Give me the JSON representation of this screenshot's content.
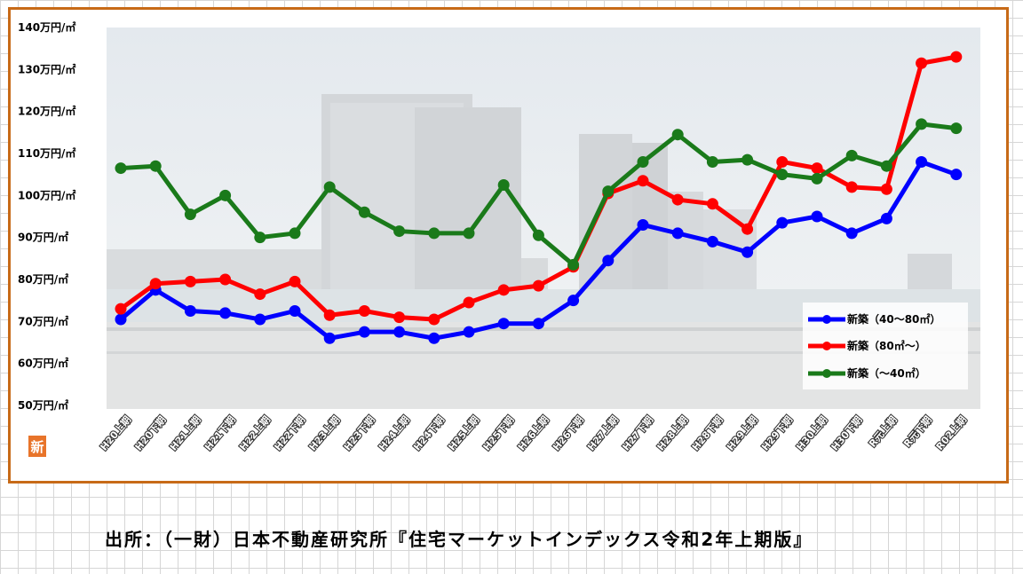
{
  "chart_data": {
    "type": "line",
    "title": "",
    "xlabel": "",
    "ylabel": "",
    "ylim": [
      50,
      140
    ],
    "yticks": [
      50,
      60,
      70,
      80,
      90,
      100,
      110,
      120,
      130,
      140
    ],
    "y_unit_suffix": "万円/㎡",
    "categories": [
      "H20上期",
      "H20下期",
      "H21上期",
      "H21下期",
      "H22上期",
      "H22下期",
      "H23上期",
      "H23下期",
      "H24上期",
      "H24下期",
      "H25上期",
      "H25下期",
      "H26上期",
      "H26下期",
      "H27上期",
      "H27下期",
      "H28上期",
      "H28下期",
      "H29上期",
      "H29下期",
      "H30上期",
      "H30下期",
      "R元上期",
      "R元下期",
      "R02上期"
    ],
    "grid": false,
    "legend_position": "bottom-right",
    "series": [
      {
        "name": "新築（40～80㎡）",
        "color": "#0000ff",
        "values": [
          70.5,
          77.5,
          72.5,
          72,
          70.5,
          72.5,
          66,
          67.5,
          67.5,
          66,
          67.5,
          69.5,
          69.5,
          75,
          84.5,
          93,
          91,
          89,
          86.5,
          93.5,
          95,
          91,
          94.5,
          108,
          105
        ]
      },
      {
        "name": "新築（80㎡～）",
        "color": "#ff0000",
        "values": [
          73,
          79,
          79.5,
          80,
          76.5,
          79.5,
          71.5,
          72.5,
          71,
          70.5,
          74.5,
          77.5,
          78.5,
          83,
          100.5,
          103.5,
          99,
          98,
          92,
          108,
          106.5,
          102,
          101.5,
          131.5,
          133
        ]
      },
      {
        "name": "新築（～40㎡）",
        "color": "#1a7a1a",
        "values": [
          106.5,
          107,
          95.5,
          100,
          90,
          91,
          102,
          96,
          91.5,
          91,
          91,
          102.5,
          90.5,
          83.5,
          101,
          108,
          114.5,
          108,
          108.5,
          105,
          104,
          109.5,
          107,
          117,
          116
        ]
      }
    ]
  },
  "logo_text": "新",
  "source_text": "出所：（一財）日本不動産研究所『住宅マーケットインデックス令和2年上期版』"
}
